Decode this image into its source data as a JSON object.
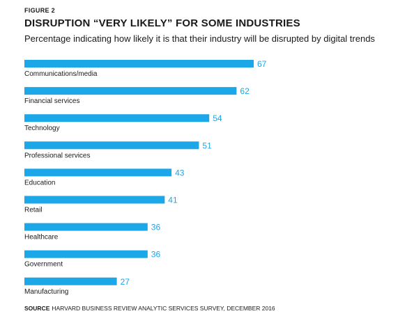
{
  "figure_label": "FIGURE 2",
  "title": "DISRUPTION “VERY LIKELY” FOR SOME INDUSTRIES",
  "subtitle": "Percentage indicating how likely it is that their industry will be disrupted by digital trends",
  "source_label": "SOURCE",
  "source_text": "HARVARD BUSINESS REVIEW ANALYTIC SERVICES SURVEY, DECEMBER 2016",
  "colors": {
    "bar": "#1ba7e8",
    "value_label": "#1ba7e8",
    "category_label": "#1a1a1a"
  },
  "chart_data": {
    "type": "bar",
    "orientation": "horizontal",
    "categories": [
      "Communications/media",
      "Financial services",
      "Technology",
      "Professional services",
      "Education",
      "Retail",
      "Healthcare",
      "Government",
      "Manufacturing"
    ],
    "values": [
      67,
      62,
      54,
      51,
      43,
      41,
      36,
      36,
      27
    ],
    "title": "DISRUPTION “VERY LIKELY” FOR SOME INDUSTRIES",
    "subtitle": "Percentage indicating how likely it is that their industry will be disrupted by digital trends",
    "xlabel": "",
    "ylabel": "",
    "xlim": [
      0,
      67
    ],
    "grid": false,
    "data_labels": true
  }
}
